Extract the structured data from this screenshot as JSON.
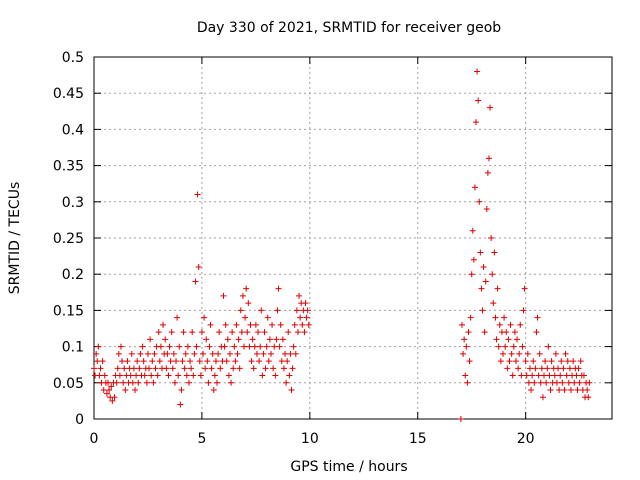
{
  "chart_data": {
    "type": "scatter",
    "title": "Day 330 of 2021, SRMTID for receiver geob",
    "xlabel": "GPS time / hours",
    "ylabel": "SRMTID / TECUs",
    "xlim": [
      0,
      24
    ],
    "ylim": [
      0,
      0.5
    ],
    "xticks": [
      0,
      5,
      10,
      15,
      20
    ],
    "yticks": [
      0,
      0.05,
      0.1,
      0.15,
      0.2,
      0.25,
      0.3,
      0.35,
      0.4,
      0.45,
      0.5
    ],
    "ytick_labels": [
      "0",
      "0.05",
      "0.1",
      "0.15",
      "0.2",
      "0.25",
      "0.3",
      "0.35",
      "0.4",
      "0.45",
      "0.5"
    ],
    "grid": true,
    "marker": "+",
    "color": "#e00000",
    "series": [
      {
        "name": "SRMTID",
        "points": [
          [
            0.0,
            0.07
          ],
          [
            0.05,
            0.06
          ],
          [
            0.1,
            0.09
          ],
          [
            0.15,
            0.08
          ],
          [
            0.2,
            0.1
          ],
          [
            0.25,
            0.06
          ],
          [
            0.3,
            0.07
          ],
          [
            0.35,
            0.05
          ],
          [
            0.4,
            0.08
          ],
          [
            0.45,
            0.04
          ],
          [
            0.5,
            0.06
          ],
          [
            0.55,
            0.05
          ],
          [
            0.6,
            0.035
          ],
          [
            0.65,
            0.05
          ],
          [
            0.7,
            0.04
          ],
          [
            0.75,
            0.03
          ],
          [
            0.8,
            0.045
          ],
          [
            0.85,
            0.025
          ],
          [
            0.9,
            0.05
          ],
          [
            0.95,
            0.03
          ],
          [
            1.0,
            0.06
          ],
          [
            1.05,
            0.05
          ],
          [
            1.1,
            0.07
          ],
          [
            1.15,
            0.09
          ],
          [
            1.2,
            0.06
          ],
          [
            1.25,
            0.1
          ],
          [
            1.3,
            0.08
          ],
          [
            1.35,
            0.05
          ],
          [
            1.4,
            0.07
          ],
          [
            1.45,
            0.04
          ],
          [
            1.5,
            0.06
          ],
          [
            1.55,
            0.08
          ],
          [
            1.6,
            0.05
          ],
          [
            1.65,
            0.07
          ],
          [
            1.7,
            0.06
          ],
          [
            1.75,
            0.09
          ],
          [
            1.8,
            0.05
          ],
          [
            1.85,
            0.07
          ],
          [
            1.9,
            0.04
          ],
          [
            1.95,
            0.06
          ],
          [
            2.0,
            0.08
          ],
          [
            2.05,
            0.05
          ],
          [
            2.1,
            0.07
          ],
          [
            2.15,
            0.09
          ],
          [
            2.2,
            0.06
          ],
          [
            2.25,
            0.1
          ],
          [
            2.3,
            0.08
          ],
          [
            2.35,
            0.06
          ],
          [
            2.4,
            0.07
          ],
          [
            2.45,
            0.05
          ],
          [
            2.5,
            0.09
          ],
          [
            2.55,
            0.07
          ],
          [
            2.6,
            0.11
          ],
          [
            2.65,
            0.06
          ],
          [
            2.7,
            0.08
          ],
          [
            2.75,
            0.05
          ],
          [
            2.8,
            0.09
          ],
          [
            2.85,
            0.07
          ],
          [
            2.9,
            0.1
          ],
          [
            2.95,
            0.06
          ],
          [
            3.0,
            0.12
          ],
          [
            3.05,
            0.08
          ],
          [
            3.1,
            0.1
          ],
          [
            3.15,
            0.07
          ],
          [
            3.2,
            0.13
          ],
          [
            3.25,
            0.09
          ],
          [
            3.3,
            0.11
          ],
          [
            3.35,
            0.07
          ],
          [
            3.4,
            0.09
          ],
          [
            3.45,
            0.06
          ],
          [
            3.5,
            0.1
          ],
          [
            3.55,
            0.08
          ],
          [
            3.6,
            0.12
          ],
          [
            3.65,
            0.07
          ],
          [
            3.7,
            0.09
          ],
          [
            3.75,
            0.05
          ],
          [
            3.8,
            0.08
          ],
          [
            3.85,
            0.14
          ],
          [
            3.9,
            0.06
          ],
          [
            3.95,
            0.1
          ],
          [
            4.0,
            0.02
          ],
          [
            4.05,
            0.04
          ],
          [
            4.1,
            0.08
          ],
          [
            4.15,
            0.12
          ],
          [
            4.2,
            0.07
          ],
          [
            4.25,
            0.09
          ],
          [
            4.3,
            0.06
          ],
          [
            4.35,
            0.1
          ],
          [
            4.4,
            0.05
          ],
          [
            4.45,
            0.08
          ],
          [
            4.5,
            0.07
          ],
          [
            4.55,
            0.12
          ],
          [
            4.6,
            0.06
          ],
          [
            4.65,
            0.09
          ],
          [
            4.7,
            0.19
          ],
          [
            4.75,
            0.1
          ],
          [
            4.8,
            0.31
          ],
          [
            4.85,
            0.21
          ],
          [
            4.9,
            0.08
          ],
          [
            4.95,
            0.06
          ],
          [
            5.0,
            0.12
          ],
          [
            5.05,
            0.09
          ],
          [
            5.1,
            0.14
          ],
          [
            5.15,
            0.07
          ],
          [
            5.2,
            0.11
          ],
          [
            5.25,
            0.08
          ],
          [
            5.3,
            0.05
          ],
          [
            5.35,
            0.1
          ],
          [
            5.4,
            0.13
          ],
          [
            5.45,
            0.07
          ],
          [
            5.5,
            0.09
          ],
          [
            5.55,
            0.04
          ],
          [
            5.6,
            0.06
          ],
          [
            5.65,
            0.08
          ],
          [
            5.7,
            0.05
          ],
          [
            5.75,
            0.09
          ],
          [
            5.8,
            0.12
          ],
          [
            5.85,
            0.07
          ],
          [
            5.9,
            0.1
          ],
          [
            5.95,
            0.08
          ],
          [
            6.0,
            0.17
          ],
          [
            6.05,
            0.1
          ],
          [
            6.1,
            0.13
          ],
          [
            6.15,
            0.08
          ],
          [
            6.2,
            0.11
          ],
          [
            6.25,
            0.06
          ],
          [
            6.3,
            0.09
          ],
          [
            6.35,
            0.05
          ],
          [
            6.4,
            0.12
          ],
          [
            6.45,
            0.07
          ],
          [
            6.5,
            0.1
          ],
          [
            6.55,
            0.08
          ],
          [
            6.6,
            0.13
          ],
          [
            6.65,
            0.09
          ],
          [
            6.7,
            0.11
          ],
          [
            6.75,
            0.07
          ],
          [
            6.8,
            0.15
          ],
          [
            6.85,
            0.12
          ],
          [
            6.9,
            0.17
          ],
          [
            6.95,
            0.1
          ],
          [
            7.0,
            0.14
          ],
          [
            7.05,
            0.18
          ],
          [
            7.1,
            0.12
          ],
          [
            7.15,
            0.16
          ],
          [
            7.2,
            0.1
          ],
          [
            7.25,
            0.13
          ],
          [
            7.3,
            0.08
          ],
          [
            7.35,
            0.11
          ],
          [
            7.4,
            0.07
          ],
          [
            7.45,
            0.1
          ],
          [
            7.5,
            0.13
          ],
          [
            7.55,
            0.09
          ],
          [
            7.6,
            0.12
          ],
          [
            7.65,
            0.08
          ],
          [
            7.7,
            0.1
          ],
          [
            7.75,
            0.15
          ],
          [
            7.8,
            0.06
          ],
          [
            7.85,
            0.09
          ],
          [
            7.9,
            0.12
          ],
          [
            7.95,
            0.07
          ],
          [
            8.0,
            0.1
          ],
          [
            8.05,
            0.14
          ],
          [
            8.1,
            0.08
          ],
          [
            8.15,
            0.11
          ],
          [
            8.2,
            0.09
          ],
          [
            8.25,
            0.13
          ],
          [
            8.3,
            0.07
          ],
          [
            8.35,
            0.1
          ],
          [
            8.4,
            0.06
          ],
          [
            8.45,
            0.11
          ],
          [
            8.5,
            0.15
          ],
          [
            8.55,
            0.18
          ],
          [
            8.6,
            0.1
          ],
          [
            8.65,
            0.13
          ],
          [
            8.7,
            0.08
          ],
          [
            8.75,
            0.11
          ],
          [
            8.8,
            0.07
          ],
          [
            8.85,
            0.09
          ],
          [
            8.9,
            0.05
          ],
          [
            8.95,
            0.08
          ],
          [
            9.0,
            0.12
          ],
          [
            9.05,
            0.06
          ],
          [
            9.1,
            0.09
          ],
          [
            9.15,
            0.04
          ],
          [
            9.2,
            0.07
          ],
          [
            9.25,
            0.1
          ],
          [
            9.3,
            0.13
          ],
          [
            9.35,
            0.09
          ],
          [
            9.4,
            0.15
          ],
          [
            9.45,
            0.12
          ],
          [
            9.5,
            0.17
          ],
          [
            9.55,
            0.14
          ],
          [
            9.6,
            0.16
          ],
          [
            9.65,
            0.13
          ],
          [
            9.7,
            0.15
          ],
          [
            9.75,
            0.12
          ],
          [
            9.8,
            0.16
          ],
          [
            9.85,
            0.14
          ],
          [
            9.9,
            0.15
          ],
          [
            9.95,
            0.13
          ],
          [
            17.0,
            0.0
          ],
          [
            17.05,
            0.13
          ],
          [
            17.1,
            0.09
          ],
          [
            17.15,
            0.11
          ],
          [
            17.2,
            0.06
          ],
          [
            17.25,
            0.1
          ],
          [
            17.3,
            0.05
          ],
          [
            17.35,
            0.12
          ],
          [
            17.4,
            0.08
          ],
          [
            17.45,
            0.14
          ],
          [
            17.5,
            0.2
          ],
          [
            17.55,
            0.26
          ],
          [
            17.6,
            0.22
          ],
          [
            17.65,
            0.32
          ],
          [
            17.7,
            0.41
          ],
          [
            17.75,
            0.48
          ],
          [
            17.8,
            0.44
          ],
          [
            17.85,
            0.3
          ],
          [
            17.9,
            0.23
          ],
          [
            17.95,
            0.18
          ],
          [
            18.0,
            0.15
          ],
          [
            18.05,
            0.21
          ],
          [
            18.1,
            0.12
          ],
          [
            18.15,
            0.19
          ],
          [
            18.2,
            0.29
          ],
          [
            18.25,
            0.34
          ],
          [
            18.3,
            0.36
          ],
          [
            18.35,
            0.43
          ],
          [
            18.4,
            0.25
          ],
          [
            18.45,
            0.2
          ],
          [
            18.5,
            0.16
          ],
          [
            18.55,
            0.23
          ],
          [
            18.6,
            0.14
          ],
          [
            18.65,
            0.11
          ],
          [
            18.7,
            0.18
          ],
          [
            18.75,
            0.1
          ],
          [
            18.8,
            0.13
          ],
          [
            18.85,
            0.08
          ],
          [
            18.9,
            0.12
          ],
          [
            18.95,
            0.09
          ],
          [
            19.0,
            0.14
          ],
          [
            19.05,
            0.1
          ],
          [
            19.1,
            0.12
          ],
          [
            19.15,
            0.07
          ],
          [
            19.2,
            0.11
          ],
          [
            19.25,
            0.08
          ],
          [
            19.3,
            0.13
          ],
          [
            19.35,
            0.09
          ],
          [
            19.4,
            0.06
          ],
          [
            19.45,
            0.1
          ],
          [
            19.5,
            0.12
          ],
          [
            19.55,
            0.08
          ],
          [
            19.6,
            0.11
          ],
          [
            19.65,
            0.07
          ],
          [
            19.7,
            0.09
          ],
          [
            19.75,
            0.13
          ],
          [
            19.8,
            0.06
          ],
          [
            19.85,
            0.1
          ],
          [
            19.9,
            0.15
          ],
          [
            19.95,
            0.18
          ],
          [
            20.0,
            0.08
          ],
          [
            20.05,
            0.06
          ],
          [
            20.1,
            0.09
          ],
          [
            20.15,
            0.05
          ],
          [
            20.2,
            0.07
          ],
          [
            20.25,
            0.04
          ],
          [
            20.3,
            0.06
          ],
          [
            20.35,
            0.08
          ],
          [
            20.4,
            0.05
          ],
          [
            20.45,
            0.07
          ],
          [
            20.5,
            0.12
          ],
          [
            20.55,
            0.14
          ],
          [
            20.6,
            0.06
          ],
          [
            20.65,
            0.09
          ],
          [
            20.7,
            0.05
          ],
          [
            20.75,
            0.07
          ],
          [
            20.8,
            0.03
          ],
          [
            20.85,
            0.06
          ],
          [
            20.9,
            0.08
          ],
          [
            20.95,
            0.05
          ],
          [
            21.0,
            0.07
          ],
          [
            21.05,
            0.1
          ],
          [
            21.1,
            0.06
          ],
          [
            21.15,
            0.04
          ],
          [
            21.2,
            0.08
          ],
          [
            21.25,
            0.05
          ],
          [
            21.3,
            0.07
          ],
          [
            21.35,
            0.06
          ],
          [
            21.4,
            0.09
          ],
          [
            21.45,
            0.05
          ],
          [
            21.5,
            0.07
          ],
          [
            21.55,
            0.04
          ],
          [
            21.6,
            0.06
          ],
          [
            21.65,
            0.08
          ],
          [
            21.7,
            0.05
          ],
          [
            21.75,
            0.07
          ],
          [
            21.8,
            0.04
          ],
          [
            21.85,
            0.09
          ],
          [
            21.9,
            0.06
          ],
          [
            21.95,
            0.08
          ],
          [
            22.0,
            0.05
          ],
          [
            22.05,
            0.07
          ],
          [
            22.1,
            0.04
          ],
          [
            22.15,
            0.06
          ],
          [
            22.2,
            0.08
          ],
          [
            22.25,
            0.05
          ],
          [
            22.3,
            0.07
          ],
          [
            22.35,
            0.06
          ],
          [
            22.4,
            0.04
          ],
          [
            22.45,
            0.07
          ],
          [
            22.5,
            0.05
          ],
          [
            22.55,
            0.08
          ],
          [
            22.6,
            0.06
          ],
          [
            22.65,
            0.04
          ],
          [
            22.7,
            0.06
          ],
          [
            22.75,
            0.03
          ],
          [
            22.8,
            0.05
          ],
          [
            22.85,
            0.04
          ],
          [
            22.9,
            0.03
          ],
          [
            22.95,
            0.05
          ]
        ]
      }
    ]
  }
}
